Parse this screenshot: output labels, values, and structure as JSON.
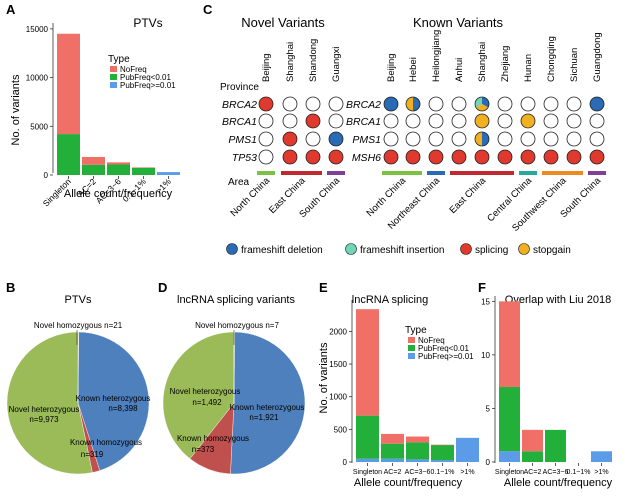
{
  "colors": {
    "nofreq": "#f07068",
    "pub_lt": "#22b03a",
    "pub_ge": "#5b9be8",
    "known_het": "#4e80bd",
    "novel_het": "#9bbb59",
    "known_hom": "#c0504d",
    "novel_hom": "#9aaaa0",
    "frameshift_deletion": "#2a6bb5",
    "frameshift_insertion": "#6fd6b8",
    "splicing": "#e03a2e",
    "stopgain": "#f0b020",
    "north_china": "#7cc242",
    "northeast_china": "#2a6bb5",
    "east_china": "#c0282e",
    "central_china": "#26a99a",
    "southwest_china": "#ea8a21",
    "south_china": "#7e3f98"
  },
  "panel_labels": [
    "A",
    "B",
    "C",
    "D",
    "E",
    "F"
  ],
  "panelA": {
    "title": "PTVs",
    "ylabel": "No. of variants",
    "xlabel": "Allele count/frequency",
    "legend_title": "Type",
    "legend": [
      "NoFreq",
      "PubFreq<0.01",
      "PubFreq>=0.01"
    ],
    "yticks": [
      "0",
      "5000",
      "10000",
      "15000"
    ]
  },
  "panelB": {
    "title": "PTVs",
    "labels": {
      "novel_hom": "Novel homozygous n=21",
      "known_het_a": "Known heterozygous",
      "known_het_b": "n=8,398",
      "novel_het_a": "Novel heterozygous",
      "novel_het_b": "n=9,973",
      "known_hom_a": "Known homozygous",
      "known_hom_b": "n=319"
    }
  },
  "panelC": {
    "novel_title": "Novel Variants",
    "known_title": "Known Variants",
    "province_label": "Province",
    "area_label": "Area",
    "novel_provinces": [
      "Beijing",
      "Shanghai",
      "Shandong",
      "Guangxi"
    ],
    "known_provinces": [
      "Beijing",
      "Hebei",
      "Heilongjiang",
      "Anhui",
      "Shanghai",
      "Zhejiang",
      "Hunan",
      "Chongqing",
      "Sichuan",
      "Guangdong"
    ],
    "novel_genes": [
      "BRCA2",
      "BRCA1",
      "PMS1",
      "TP53"
    ],
    "known_genes": [
      "BRCA2",
      "BRCA1",
      "PMS1",
      "MSH6"
    ],
    "novel_areas": [
      "North China",
      "East China",
      "South China"
    ],
    "known_areas": [
      "North China",
      "Northeast China",
      "East China",
      "Central China",
      "Southwest China",
      "South China"
    ],
    "legend": [
      "frameshift deletion",
      "frameshift insertion",
      "splicing",
      "stopgain"
    ]
  },
  "panelD": {
    "title": "lncRNA splicing variants",
    "labels": {
      "novel_hom": "Novel homozygous n=7",
      "novel_het_a": "Novel heterozygous",
      "novel_het_b": "n=1,492",
      "known_het_a": "Known heterozygous",
      "known_het_b": "n=1,921",
      "known_hom": "Known homozygous",
      "known_hom_n": "n=373"
    }
  },
  "panelE": {
    "title": "lncRNA splicing",
    "ylabel": "No. of variants",
    "xlabel": "Allele count/frequency",
    "legend_title": "Type",
    "legend": [
      "NoFreq",
      "PubFreq<0.01",
      "PubFreq>=0.01"
    ],
    "yticks": [
      "0",
      "500",
      "1000",
      "1500",
      "2000"
    ]
  },
  "panelF": {
    "title": "Overlap with Liu 2018",
    "xlabel": "Allele count/frequency",
    "yticks": [
      "0",
      "5",
      "10",
      "15"
    ]
  },
  "chart_data": [
    {
      "type": "bar",
      "title": "PTVs",
      "xlabel": "Allele count/frequency",
      "ylabel": "No. of variants",
      "ylim": [
        0,
        15500
      ],
      "categories": [
        "Singleton",
        "AC=2",
        "AC=3~6",
        "0.1~1%",
        ">1%"
      ],
      "series": [
        {
          "name": "PubFreq>=0.01",
          "values": [
            0,
            0,
            0,
            0,
            300
          ]
        },
        {
          "name": "PubFreq<0.01",
          "values": [
            4200,
            1050,
            1080,
            750,
            0
          ]
        },
        {
          "name": "NoFreq",
          "values": [
            10300,
            800,
            220,
            30,
            0
          ]
        }
      ]
    },
    {
      "type": "pie",
      "title": "PTVs",
      "labels": [
        "Known heterozygous",
        "Known homozygous",
        "Novel heterozygous",
        "Novel homozygous"
      ],
      "values": [
        8398,
        319,
        9973,
        21
      ]
    },
    {
      "type": "pie",
      "title": "lncRNA splicing variants",
      "labels": [
        "Known heterozygous",
        "Known homozygous",
        "Novel heterozygous",
        "Novel homozygous"
      ],
      "values": [
        1921,
        373,
        1492,
        7
      ]
    },
    {
      "type": "bar",
      "title": "lncRNA splicing",
      "xlabel": "Allele count/frequency",
      "ylabel": "No. of variants",
      "ylim": [
        0,
        2450
      ],
      "categories": [
        "Singleton",
        "AC=2",
        "AC=3~6",
        "0.1~1%",
        ">1%"
      ],
      "series": [
        {
          "name": "PubFreq>=0.01",
          "values": [
            50,
            50,
            40,
            30,
            370
          ]
        },
        {
          "name": "PubFreq<0.01",
          "values": [
            660,
            230,
            260,
            230,
            0
          ]
        },
        {
          "name": "NoFreq",
          "values": [
            1630,
            150,
            90,
            5,
            0
          ]
        }
      ]
    },
    {
      "type": "bar",
      "title": "Overlap with Liu 2018",
      "xlabel": "Allele count/frequency",
      "ylim": [
        0,
        15.5
      ],
      "categories": [
        "Singleton",
        "AC=2",
        "AC=3~6",
        "0.1~1%",
        ">1%"
      ],
      "series": [
        {
          "name": "PubFreq>=0.01",
          "values": [
            1,
            0,
            0,
            0,
            1
          ]
        },
        {
          "name": "PubFreq<0.01",
          "values": [
            6,
            1,
            3,
            0,
            0
          ]
        },
        {
          "name": "NoFreq",
          "values": [
            8,
            2,
            0,
            0,
            0
          ]
        }
      ]
    }
  ],
  "dot_matrix": {
    "novel": [
      [
        "splicing",
        "none",
        "none",
        "none"
      ],
      [
        "none",
        "none",
        "splicing",
        "none"
      ],
      [
        "none",
        "splicing",
        "none",
        "frameshift_deletion"
      ],
      [
        "none",
        "splicing",
        "splicing",
        "splicing"
      ]
    ],
    "known": [
      [
        "frameshift_deletion",
        "frameshift_deletion|stopgain",
        "none",
        "none",
        "frameshift_deletion|stopgain|frameshift_insertion",
        "none",
        "none",
        "none",
        "none",
        "frameshift_deletion"
      ],
      [
        "none",
        "none",
        "none",
        "none",
        "stopgain",
        "none",
        "stopgain",
        "none",
        "none",
        "none"
      ],
      [
        "none",
        "none",
        "none",
        "none",
        "frameshift_deletion|stopgain",
        "none",
        "none",
        "none",
        "none",
        "none"
      ],
      [
        "splicing",
        "splicing",
        "splicing",
        "splicing",
        "splicing",
        "splicing",
        "splicing",
        "splicing",
        "splicing",
        "splicing"
      ]
    ],
    "novel_area_spans": [
      [
        0,
        0,
        "north_china"
      ],
      [
        1,
        2,
        "east_china"
      ],
      [
        3,
        3,
        "south_china"
      ]
    ],
    "known_area_spans": [
      [
        0,
        1,
        "north_china"
      ],
      [
        2,
        2,
        "northeast_china"
      ],
      [
        3,
        5,
        "east_china"
      ],
      [
        6,
        6,
        "central_china"
      ],
      [
        7,
        8,
        "southwest_china"
      ],
      [
        9,
        9,
        "south_china"
      ]
    ]
  }
}
